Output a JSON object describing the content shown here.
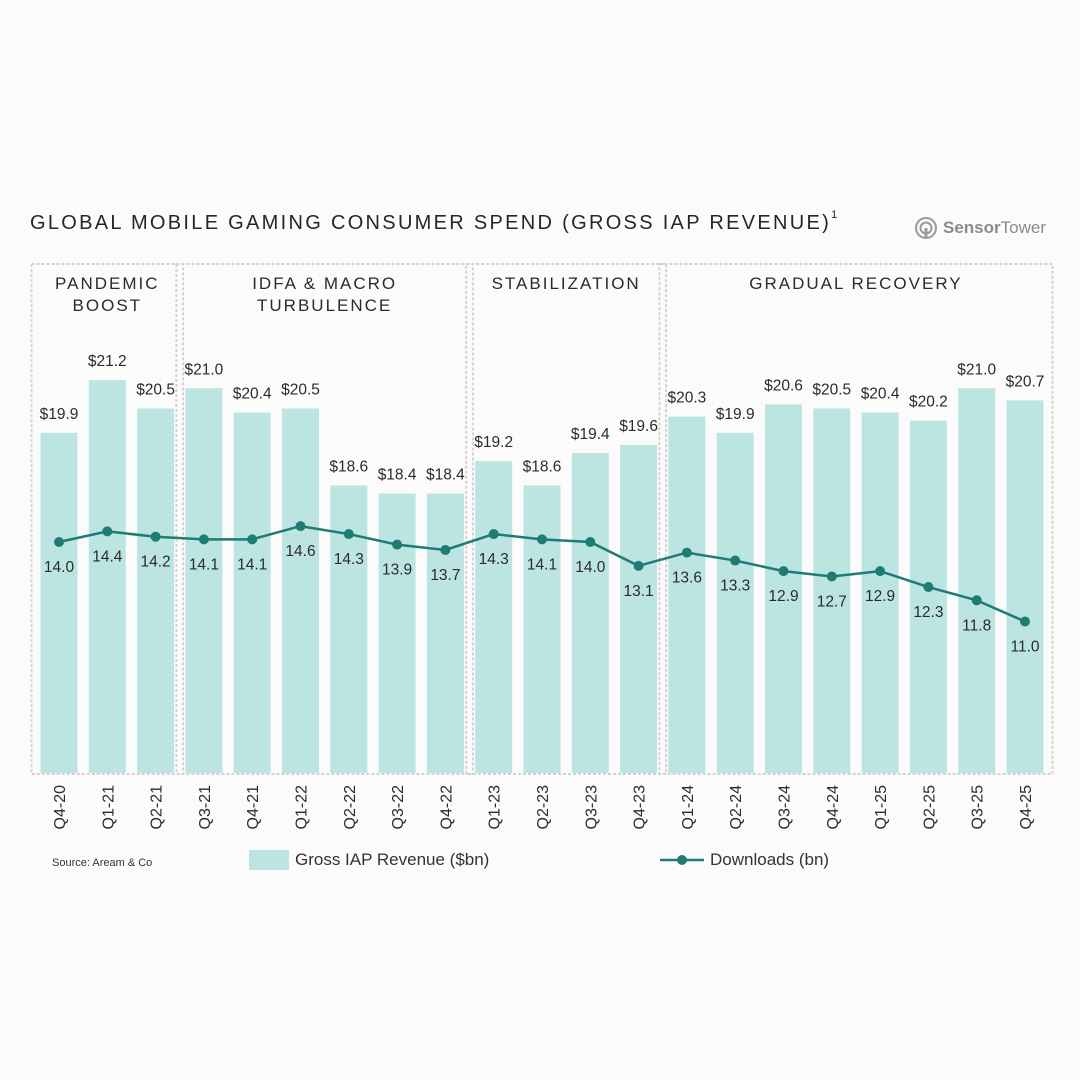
{
  "header": {
    "title": "GLOBAL MOBILE GAMING CONSUMER SPEND (GROSS IAP REVENUE)",
    "title_sup": "1",
    "logo_text_a": "Sensor",
    "logo_text_b": "Tower",
    "logo_icon": "sensortower-logo-icon"
  },
  "footer": {
    "source": "Source: Aream & Co"
  },
  "colors": {
    "bar": "#bce5e1",
    "line": "#1e7c74",
    "panel_border": "#d6d0d0",
    "text": "#2b2b2b"
  },
  "chart_data": {
    "type": "bar",
    "title": "GLOBAL MOBILE GAMING CONSUMER SPEND (GROSS IAP REVENUE)",
    "categories": [
      "Q4-20",
      "Q1-21",
      "Q2-21",
      "Q3-21",
      "Q4-21",
      "Q1-22",
      "Q2-22",
      "Q3-22",
      "Q4-22",
      "Q1-23",
      "Q2-23",
      "Q3-23",
      "Q4-23",
      "Q1-24",
      "Q2-24",
      "Q3-24",
      "Q4-24",
      "Q1-25",
      "Q2-25",
      "Q3-25",
      "Q4-25"
    ],
    "series": [
      {
        "name": "Gross IAP Revenue ($bn)",
        "type": "bar",
        "values": [
          19.9,
          21.2,
          20.5,
          21.0,
          20.4,
          20.5,
          18.6,
          18.4,
          18.4,
          19.2,
          18.6,
          19.4,
          19.6,
          20.3,
          19.9,
          20.6,
          20.5,
          20.4,
          20.2,
          21.0,
          20.7
        ],
        "labels": [
          "$19.9",
          "$21.2",
          "$20.5",
          "$21.0",
          "$20.4",
          "$20.5",
          "$18.6",
          "$18.4",
          "$18.4",
          "$19.2",
          "$18.6",
          "$19.4",
          "$19.6",
          "$20.3",
          "$19.9",
          "$20.6",
          "$20.5",
          "$20.4",
          "$20.2",
          "$21.0",
          "$20.7"
        ]
      },
      {
        "name": "Downloads (bn)",
        "type": "line",
        "values": [
          14.0,
          14.4,
          14.2,
          14.1,
          14.1,
          14.6,
          14.3,
          13.9,
          13.7,
          14.3,
          14.1,
          14.0,
          13.1,
          13.6,
          13.3,
          12.9,
          12.7,
          12.9,
          12.3,
          11.8,
          11.0
        ],
        "labels": [
          "14.0",
          "14.4",
          "14.2",
          "14.1",
          "14.1",
          "14.6",
          "14.3",
          "13.9",
          "13.7",
          "14.3",
          "14.1",
          "14.0",
          "13.1",
          "13.6",
          "13.3",
          "12.9",
          "12.7",
          "12.9",
          "12.3",
          "11.8",
          "11.0"
        ]
      }
    ],
    "phases": [
      {
        "lines": [
          "PANDEMIC",
          "BOOST"
        ],
        "start": 0,
        "end": 2
      },
      {
        "lines": [
          "IDFA & MACRO",
          "TURBULENCE"
        ],
        "start": 3,
        "end": 8
      },
      {
        "lines": [
          "STABILIZATION"
        ],
        "start": 9,
        "end": 12
      },
      {
        "lines": [
          "GRADUAL RECOVERY"
        ],
        "start": 13,
        "end": 20
      }
    ],
    "legend": [
      "Gross IAP Revenue ($bn)",
      "Downloads (bn)"
    ],
    "legend_position": "bottom",
    "grid": false
  }
}
